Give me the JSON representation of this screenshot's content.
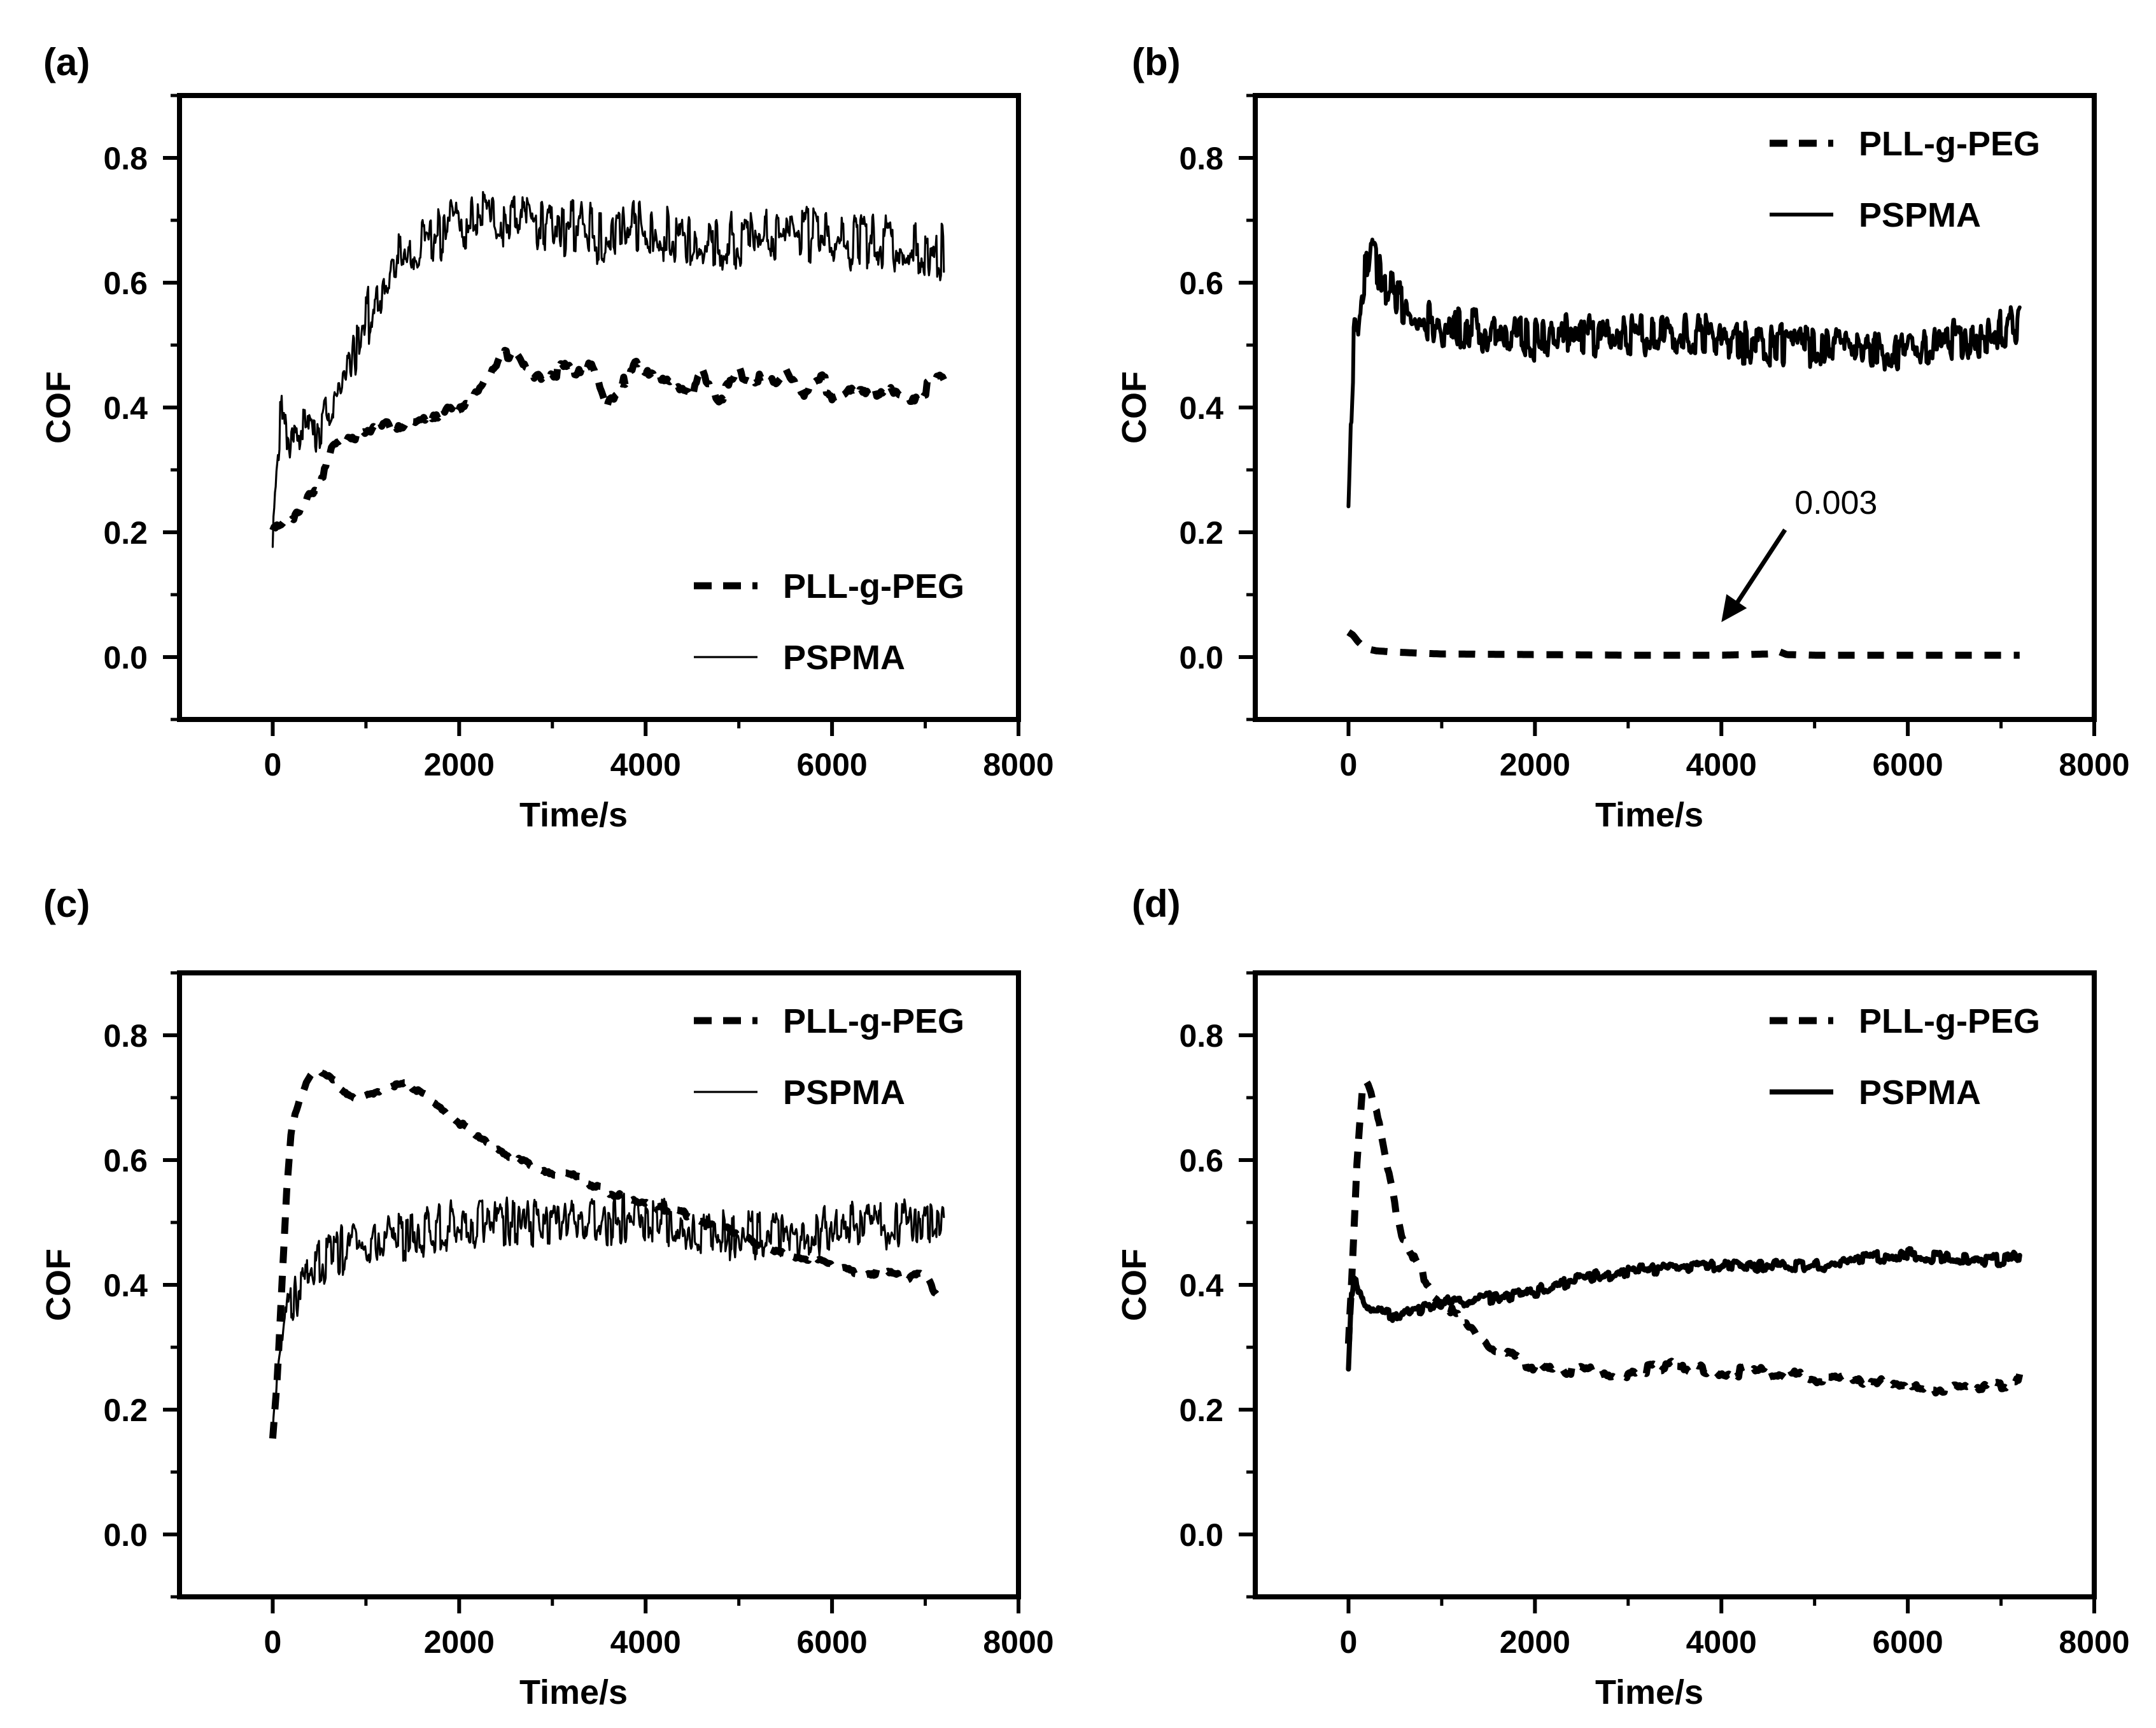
{
  "colors": {
    "line": "#000000",
    "background": "#ffffff"
  },
  "chart_data": [
    {
      "panel": "(a)",
      "type": "line",
      "xlabel": "Time/s",
      "ylabel": "COF",
      "xlim": [
        -1000,
        8000
      ],
      "ylim": [
        -0.1,
        0.9
      ],
      "xticks": [
        0,
        2000,
        4000,
        6000,
        8000
      ],
      "xtick_labels": [
        "0",
        "2000",
        "4000",
        "6000",
        "8000"
      ],
      "yticks": [
        0.0,
        0.2,
        0.4,
        0.6,
        0.8
      ],
      "ytick_labels": [
        "0.0",
        "0.2",
        "0.4",
        "0.6",
        "0.8"
      ],
      "legend_position": "bottom-right",
      "series": [
        {
          "name": "PLL-g-PEG",
          "style": "dashed",
          "noise": 0.012,
          "jitter_period": 180,
          "x": [
            0,
            100,
            200,
            300,
            400,
            500,
            600,
            700,
            800,
            1000,
            1200,
            1500,
            1800,
            2000,
            2200,
            2400,
            2500,
            2600,
            2700,
            2800,
            3000,
            3200,
            3400,
            3500,
            3600,
            3700,
            3800,
            3900,
            4000,
            4200,
            4400,
            4500,
            4600,
            4700,
            4800,
            5000,
            5200,
            5400,
            5500,
            5700,
            5900,
            6000,
            6200,
            6400,
            6600,
            6800,
            7000,
            7200
          ],
          "y": [
            0.2,
            0.21,
            0.22,
            0.24,
            0.26,
            0.27,
            0.33,
            0.35,
            0.36,
            0.36,
            0.37,
            0.38,
            0.39,
            0.4,
            0.42,
            0.46,
            0.48,
            0.5,
            0.47,
            0.45,
            0.46,
            0.46,
            0.48,
            0.44,
            0.4,
            0.41,
            0.45,
            0.48,
            0.47,
            0.45,
            0.44,
            0.43,
            0.48,
            0.43,
            0.41,
            0.45,
            0.44,
            0.43,
            0.45,
            0.41,
            0.44,
            0.42,
            0.44,
            0.42,
            0.44,
            0.42,
            0.43,
            0.44
          ]
        },
        {
          "name": "PSPMA",
          "style": "thin",
          "noise": 0.04,
          "jitter_period": 25,
          "x": [
            0,
            50,
            100,
            150,
            200,
            300,
            400,
            500,
            700,
            900,
            1100,
            1300,
            1500,
            1700,
            2000,
            2200,
            2500,
            2800,
            3000,
            3500,
            4000,
            4500,
            5000,
            5500,
            6000,
            6500,
            7000,
            7200
          ],
          "y": [
            0.17,
            0.33,
            0.39,
            0.37,
            0.36,
            0.36,
            0.37,
            0.38,
            0.43,
            0.5,
            0.57,
            0.62,
            0.65,
            0.67,
            0.69,
            0.7,
            0.7,
            0.7,
            0.69,
            0.68,
            0.68,
            0.67,
            0.67,
            0.68,
            0.67,
            0.66,
            0.65,
            0.65
          ]
        }
      ]
    },
    {
      "panel": "(b)",
      "type": "line",
      "xlabel": "Time/s",
      "ylabel": "COF",
      "xlim": [
        -1000,
        8000
      ],
      "ylim": [
        -0.1,
        0.9
      ],
      "xticks": [
        0,
        2000,
        4000,
        6000,
        8000
      ],
      "xtick_labels": [
        "0",
        "2000",
        "4000",
        "6000",
        "8000"
      ],
      "yticks": [
        0.0,
        0.2,
        0.4,
        0.6,
        0.8
      ],
      "ytick_labels": [
        "0.0",
        "0.2",
        "0.4",
        "0.6",
        "0.8"
      ],
      "legend_position": "top-right",
      "annotation": {
        "text": "0.003",
        "x": 4000,
        "y": 0.005
      },
      "series": [
        {
          "name": "PLL-g-PEG",
          "style": "dashed",
          "noise": 0.0,
          "jitter_period": 100,
          "x": [
            0,
            50,
            100,
            150,
            200,
            300,
            500,
            800,
            1000,
            2000,
            3000,
            4000,
            4500,
            4600,
            4700,
            5000,
            6000,
            7000,
            7200
          ],
          "y": [
            0.04,
            0.035,
            0.025,
            0.018,
            0.013,
            0.01,
            0.008,
            0.006,
            0.005,
            0.004,
            0.003,
            0.003,
            0.005,
            0.01,
            0.004,
            0.003,
            0.003,
            0.003,
            0.003
          ]
        },
        {
          "name": "PSPMA",
          "style": "medium",
          "noise": 0.03,
          "jitter_period": 25,
          "x": [
            0,
            30,
            60,
            100,
            150,
            200,
            250,
            300,
            400,
            600,
            800,
            1000,
            1500,
            2000,
            2500,
            3000,
            3500,
            4000,
            4500,
            5000,
            5500,
            5800,
            6000,
            6500,
            7000,
            7200
          ],
          "y": [
            0.22,
            0.4,
            0.52,
            0.55,
            0.6,
            0.63,
            0.65,
            0.63,
            0.6,
            0.56,
            0.55,
            0.53,
            0.52,
            0.51,
            0.52,
            0.51,
            0.52,
            0.51,
            0.5,
            0.5,
            0.5,
            0.49,
            0.5,
            0.51,
            0.52,
            0.53
          ]
        }
      ]
    },
    {
      "panel": "(c)",
      "type": "line",
      "xlabel": "Time/s",
      "ylabel": "COF",
      "xlim": [
        -1000,
        8000
      ],
      "ylim": [
        -0.1,
        0.9
      ],
      "xticks": [
        0,
        2000,
        4000,
        6000,
        8000
      ],
      "xtick_labels": [
        "0",
        "2000",
        "4000",
        "6000",
        "8000"
      ],
      "yticks": [
        0.0,
        0.2,
        0.4,
        0.6,
        0.8
      ],
      "ytick_labels": [
        "0.0",
        "0.2",
        "0.4",
        "0.6",
        "0.8"
      ],
      "legend_position": "top-right",
      "series": [
        {
          "name": "PLL-g-PEG",
          "style": "dashed",
          "noise": 0.005,
          "jitter_period": 120,
          "x": [
            0,
            50,
            100,
            150,
            200,
            300,
            400,
            500,
            700,
            900,
            1100,
            1300,
            1500,
            1700,
            2000,
            2300,
            2600,
            3000,
            3300,
            3600,
            4000,
            4500,
            5000,
            5500,
            5800,
            6000,
            6300,
            6500,
            6800,
            7000,
            7100,
            7200
          ],
          "y": [
            0.15,
            0.25,
            0.4,
            0.55,
            0.65,
            0.7,
            0.73,
            0.74,
            0.72,
            0.7,
            0.71,
            0.72,
            0.72,
            0.7,
            0.66,
            0.63,
            0.6,
            0.58,
            0.57,
            0.55,
            0.53,
            0.51,
            0.48,
            0.45,
            0.44,
            0.43,
            0.42,
            0.42,
            0.41,
            0.42,
            0.39,
            0.38
          ]
        },
        {
          "name": "PSPMA",
          "style": "thin",
          "noise": 0.035,
          "jitter_period": 25,
          "x": [
            0,
            50,
            100,
            150,
            200,
            300,
            500,
            700,
            1000,
            1500,
            2000,
            2500,
            3000,
            3500,
            4000,
            4500,
            5000,
            5500,
            6000,
            6500,
            7000,
            7200
          ],
          "y": [
            0.14,
            0.26,
            0.32,
            0.35,
            0.37,
            0.4,
            0.43,
            0.45,
            0.47,
            0.48,
            0.5,
            0.5,
            0.5,
            0.5,
            0.51,
            0.49,
            0.48,
            0.48,
            0.49,
            0.49,
            0.5,
            0.5
          ]
        }
      ]
    },
    {
      "panel": "(d)",
      "type": "line",
      "xlabel": "Time/s",
      "ylabel": "COF",
      "xlim": [
        -1000,
        8000
      ],
      "ylim": [
        -0.1,
        0.9
      ],
      "xticks": [
        0,
        2000,
        4000,
        6000,
        8000
      ],
      "xtick_labels": [
        "0",
        "2000",
        "4000",
        "6000",
        "8000"
      ],
      "yticks": [
        0.0,
        0.2,
        0.4,
        0.6,
        0.8
      ],
      "ytick_labels": [
        "0.0",
        "0.2",
        "0.4",
        "0.6",
        "0.8"
      ],
      "legend_position": "top-right",
      "series": [
        {
          "name": "PLL-g-PEG",
          "style": "dashed",
          "noise": 0.008,
          "jitter_period": 100,
          "x": [
            0,
            50,
            100,
            150,
            200,
            300,
            400,
            500,
            600,
            800,
            1000,
            1200,
            1500,
            1800,
            2000,
            2500,
            3000,
            3500,
            4000,
            4500,
            5000,
            5500,
            6000,
            6500,
            7000,
            7200
          ],
          "y": [
            0.3,
            0.45,
            0.62,
            0.72,
            0.73,
            0.68,
            0.6,
            0.53,
            0.47,
            0.41,
            0.37,
            0.34,
            0.3,
            0.28,
            0.27,
            0.26,
            0.26,
            0.27,
            0.26,
            0.26,
            0.25,
            0.25,
            0.23,
            0.24,
            0.24,
            0.25
          ]
        },
        {
          "name": "PSPMA",
          "style": "thick",
          "noise": 0.008,
          "jitter_period": 40,
          "x": [
            0,
            30,
            60,
            100,
            150,
            200,
            300,
            500,
            700,
            1000,
            1500,
            2000,
            2500,
            3000,
            3500,
            4000,
            4500,
            5000,
            5500,
            6000,
            6500,
            7000,
            7200
          ],
          "y": [
            0.26,
            0.38,
            0.42,
            0.39,
            0.37,
            0.36,
            0.36,
            0.35,
            0.36,
            0.37,
            0.38,
            0.39,
            0.41,
            0.42,
            0.43,
            0.43,
            0.43,
            0.43,
            0.44,
            0.45,
            0.44,
            0.44,
            0.45
          ]
        }
      ]
    }
  ]
}
